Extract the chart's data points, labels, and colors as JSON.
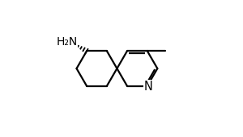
{
  "bg_color": "#ffffff",
  "bond_color": "#000000",
  "text_color": "#000000",
  "figsize": [
    3.0,
    1.7
  ],
  "dpi": 100,
  "lw": 1.6,
  "BL": 0.148,
  "rcx": 0.615,
  "rcy": 0.5,
  "n_label": "N",
  "nh2_label": "H₂N"
}
